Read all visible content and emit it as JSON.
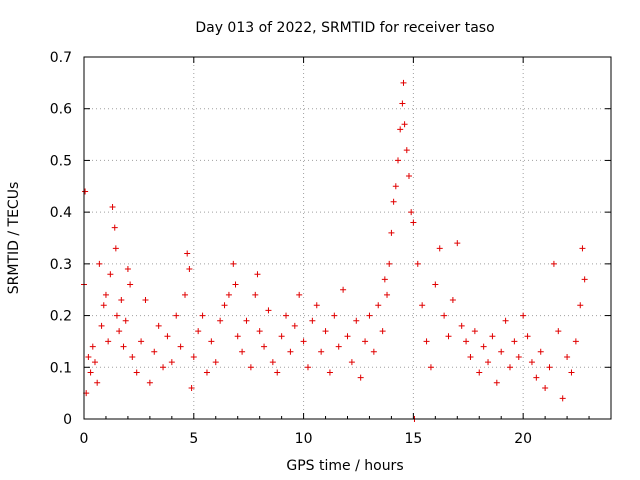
{
  "chart_data": {
    "type": "scatter",
    "title": "Day 013 of 2022, SRMTID for receiver taso",
    "xlabel": "GPS time / hours",
    "ylabel": "SRMTID / TECUs",
    "xlim": [
      0,
      24
    ],
    "ylim": [
      0,
      0.7
    ],
    "grid": true,
    "marker": "plus",
    "color": "#e00000",
    "x_ticks": [
      0,
      5,
      10,
      15,
      20
    ],
    "x_tick_labels": [
      "0",
      "5",
      "10",
      "15",
      "20"
    ],
    "y_ticks": [
      0,
      0.1,
      0.2,
      0.3,
      0.4,
      0.5,
      0.6,
      0.7
    ],
    "y_tick_labels": [
      "0",
      "0.1",
      "0.2",
      "0.3",
      "0.4",
      "0.5",
      "0.6",
      "0.7"
    ],
    "series": [
      {
        "name": "SRMTID",
        "x": [
          0.0,
          0.05,
          0.1,
          0.2,
          0.3,
          0.4,
          0.5,
          0.6,
          0.7,
          0.8,
          0.9,
          1.0,
          1.1,
          1.2,
          1.3,
          1.4,
          1.45,
          1.5,
          1.6,
          1.7,
          1.8,
          1.9,
          2.0,
          2.1,
          2.2,
          2.4,
          2.6,
          2.8,
          3.0,
          3.2,
          3.4,
          3.6,
          3.8,
          4.0,
          4.2,
          4.4,
          4.6,
          4.7,
          4.8,
          4.9,
          5.0,
          5.2,
          5.4,
          5.6,
          5.8,
          6.0,
          6.2,
          6.4,
          6.6,
          6.8,
          6.9,
          7.0,
          7.2,
          7.4,
          7.6,
          7.8,
          7.9,
          8.0,
          8.2,
          8.4,
          8.6,
          8.8,
          9.0,
          9.2,
          9.4,
          9.6,
          9.8,
          10.0,
          10.2,
          10.4,
          10.6,
          10.8,
          11.0,
          11.2,
          11.4,
          11.6,
          11.8,
          12.0,
          12.2,
          12.4,
          12.6,
          12.8,
          13.0,
          13.2,
          13.4,
          13.6,
          13.7,
          13.8,
          13.9,
          14.0,
          14.1,
          14.2,
          14.3,
          14.4,
          14.5,
          14.55,
          14.6,
          14.7,
          14.8,
          14.9,
          15.0,
          15.05,
          15.2,
          15.4,
          15.6,
          15.8,
          16.0,
          16.2,
          16.4,
          16.6,
          16.8,
          17.0,
          17.2,
          17.4,
          17.6,
          17.8,
          18.0,
          18.2,
          18.4,
          18.6,
          18.8,
          19.0,
          19.2,
          19.4,
          19.6,
          19.8,
          20.0,
          20.2,
          20.4,
          20.6,
          20.8,
          21.0,
          21.2,
          21.4,
          21.6,
          21.8,
          22.0,
          22.2,
          22.4,
          22.6,
          22.7,
          22.8
        ],
        "y": [
          0.26,
          0.44,
          0.05,
          0.12,
          0.09,
          0.14,
          0.11,
          0.07,
          0.3,
          0.18,
          0.22,
          0.24,
          0.15,
          0.28,
          0.41,
          0.37,
          0.33,
          0.2,
          0.17,
          0.23,
          0.14,
          0.19,
          0.29,
          0.26,
          0.12,
          0.09,
          0.15,
          0.23,
          0.07,
          0.13,
          0.18,
          0.1,
          0.16,
          0.11,
          0.2,
          0.14,
          0.24,
          0.32,
          0.29,
          0.06,
          0.12,
          0.17,
          0.2,
          0.09,
          0.15,
          0.11,
          0.19,
          0.22,
          0.24,
          0.3,
          0.26,
          0.16,
          0.13,
          0.19,
          0.1,
          0.24,
          0.28,
          0.17,
          0.14,
          0.21,
          0.11,
          0.09,
          0.16,
          0.2,
          0.13,
          0.18,
          0.24,
          0.15,
          0.1,
          0.19,
          0.22,
          0.13,
          0.17,
          0.09,
          0.2,
          0.14,
          0.25,
          0.16,
          0.11,
          0.19,
          0.08,
          0.15,
          0.2,
          0.13,
          0.22,
          0.17,
          0.27,
          0.24,
          0.3,
          0.36,
          0.42,
          0.45,
          0.5,
          0.56,
          0.61,
          0.65,
          0.57,
          0.52,
          0.47,
          0.4,
          0.38,
          0.0,
          0.3,
          0.22,
          0.15,
          0.1,
          0.26,
          0.33,
          0.2,
          0.16,
          0.23,
          0.34,
          0.18,
          0.15,
          0.12,
          0.17,
          0.09,
          0.14,
          0.11,
          0.16,
          0.07,
          0.13,
          0.19,
          0.1,
          0.15,
          0.12,
          0.2,
          0.16,
          0.11,
          0.08,
          0.13,
          0.06,
          0.1,
          0.3,
          0.17,
          0.04,
          0.12,
          0.09,
          0.15,
          0.22,
          0.33,
          0.27
        ]
      }
    ]
  }
}
